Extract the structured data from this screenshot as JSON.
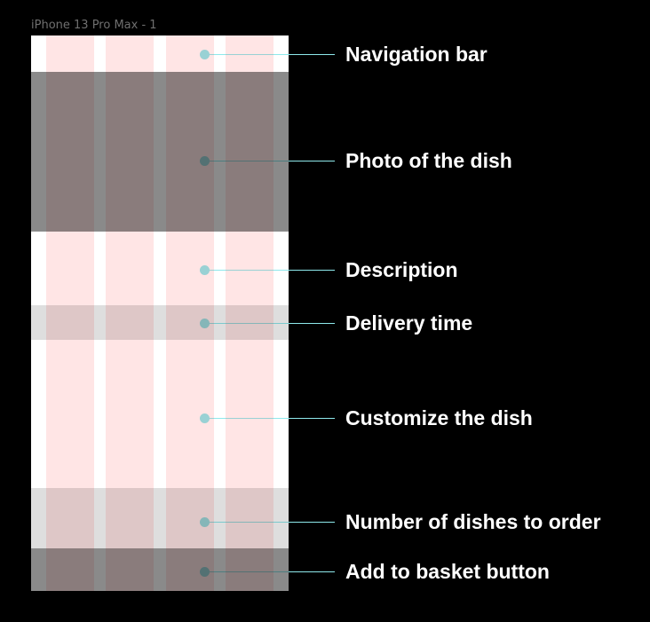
{
  "frame_title": "iPhone 13 Pro Max - 1",
  "colors": {
    "background": "#000000",
    "frame": "#ffffff",
    "grid_column": "#ffe5e5",
    "callout": "#8ee9ec",
    "label": "#ffffff"
  },
  "sections": [
    {
      "label": "Navigation bar"
    },
    {
      "label": "Photo of the dish"
    },
    {
      "label": "Description"
    },
    {
      "label": "Delivery time"
    },
    {
      "label": "Customize the dish"
    },
    {
      "label": "Number of dishes to order"
    },
    {
      "label": "Add to basket button"
    }
  ]
}
